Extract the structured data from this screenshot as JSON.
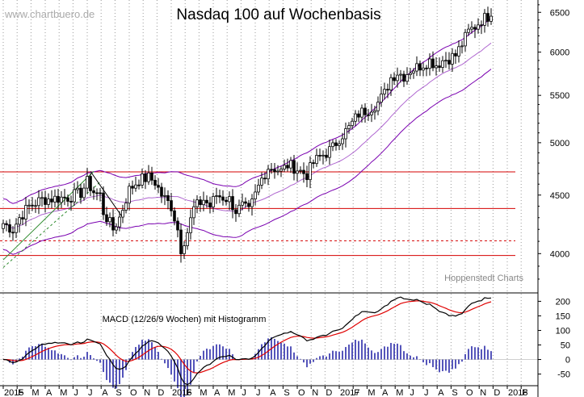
{
  "watermark": "www.chartbuero.de",
  "title": "Nasdaq 100 auf Wochenbasis",
  "credit": "Hoppenstedt Charts",
  "macd_label": "MACD (12/26/9 Wochen) mit Histogramm",
  "colors": {
    "grid": "#9a9a9a",
    "band": "#7a00b0",
    "hline": "#d40000",
    "trend_solid": "#2e8b2e",
    "trend_dashed": "#2e8b2e",
    "macd_line": "#000000",
    "signal_line": "#e00000",
    "histogram": "#2a2aa8"
  },
  "chart_data": [
    {
      "type": "candlestick",
      "title": "Nasdaq 100 auf Wochenbasis",
      "y_ticks": [
        4000,
        4500,
        5000,
        5500,
        6000,
        6500
      ],
      "ylim": [
        3720,
        6620
      ],
      "x_ticks": [
        {
          "label": "2015",
          "t": 0
        },
        {
          "label": "F",
          "t": 4.3
        },
        {
          "label": "M",
          "t": 8.6
        },
        {
          "label": "A",
          "t": 13
        },
        {
          "label": "M",
          "t": 17.3
        },
        {
          "label": "J",
          "t": 21.6
        },
        {
          "label": "J",
          "t": 26
        },
        {
          "label": "A",
          "t": 30.3
        },
        {
          "label": "S",
          "t": 34.6
        },
        {
          "label": "O",
          "t": 39
        },
        {
          "label": "N",
          "t": 43.3
        },
        {
          "label": "D",
          "t": 47.6
        },
        {
          "label": "2016",
          "t": 52
        },
        {
          "label": "F",
          "t": 56.3
        },
        {
          "label": "M",
          "t": 60.6
        },
        {
          "label": "A",
          "t": 65
        },
        {
          "label": "M",
          "t": 69.3
        },
        {
          "label": "J",
          "t": 73.6
        },
        {
          "label": "J",
          "t": 78
        },
        {
          "label": "A",
          "t": 82.3
        },
        {
          "label": "S",
          "t": 86.6
        },
        {
          "label": "O",
          "t": 91
        },
        {
          "label": "N",
          "t": 95.3
        },
        {
          "label": "D",
          "t": 99.6
        },
        {
          "label": "2017",
          "t": 104
        },
        {
          "label": "F",
          "t": 108.3
        },
        {
          "label": "M",
          "t": 112.6
        },
        {
          "label": "A",
          "t": 117
        },
        {
          "label": "M",
          "t": 121.3
        },
        {
          "label": "J",
          "t": 125.6
        },
        {
          "label": "J",
          "t": 130
        },
        {
          "label": "A",
          "t": 134.3
        },
        {
          "label": "S",
          "t": 138.6
        },
        {
          "label": "O",
          "t": 143
        },
        {
          "label": "N",
          "t": 147.3
        },
        {
          "label": "D",
          "t": 151.6
        },
        {
          "label": "2018",
          "t": 156
        },
        {
          "label": "F",
          "t": 160.3
        }
      ],
      "t_range": [
        0,
        162
      ],
      "close_keypoints": [
        [
          0,
          4250
        ],
        [
          3,
          4200
        ],
        [
          5,
          4300
        ],
        [
          8,
          4400
        ],
        [
          12,
          4460
        ],
        [
          16,
          4470
        ],
        [
          20,
          4480
        ],
        [
          24,
          4520
        ],
        [
          26,
          4620
        ],
        [
          28,
          4530
        ],
        [
          30,
          4500
        ],
        [
          31,
          4350
        ],
        [
          32,
          4300
        ],
        [
          34,
          4200
        ],
        [
          36,
          4300
        ],
        [
          39,
          4550
        ],
        [
          42,
          4640
        ],
        [
          45,
          4660
        ],
        [
          47,
          4620
        ],
        [
          49,
          4500
        ],
        [
          52,
          4400
        ],
        [
          54,
          4200
        ],
        [
          55,
          4040
        ],
        [
          57,
          4180
        ],
        [
          59,
          4380
        ],
        [
          62,
          4460
        ],
        [
          64,
          4400
        ],
        [
          66,
          4500
        ],
        [
          68,
          4480
        ],
        [
          70,
          4460
        ],
        [
          72,
          4360
        ],
        [
          74,
          4400
        ],
        [
          76,
          4350
        ],
        [
          78,
          4500
        ],
        [
          80,
          4650
        ],
        [
          82,
          4760
        ],
        [
          84,
          4750
        ],
        [
          86,
          4720
        ],
        [
          88,
          4780
        ],
        [
          90,
          4760
        ],
        [
          92,
          4720
        ],
        [
          94,
          4690
        ],
        [
          96,
          4800
        ],
        [
          98,
          4860
        ],
        [
          100,
          4900
        ],
        [
          102,
          4950
        ],
        [
          104,
          5050
        ],
        [
          107,
          5150
        ],
        [
          110,
          5300
        ],
        [
          113,
          5350
        ],
        [
          116,
          5420
        ],
        [
          118,
          5520
        ],
        [
          120,
          5700
        ],
        [
          122,
          5760
        ],
        [
          124,
          5720
        ],
        [
          126,
          5790
        ],
        [
          128,
          5820
        ],
        [
          130,
          5860
        ],
        [
          132,
          5900
        ],
        [
          134,
          5850
        ],
        [
          136,
          5900
        ],
        [
          138,
          5930
        ],
        [
          140,
          5960
        ],
        [
          142,
          6100
        ],
        [
          144,
          6250
        ],
        [
          146,
          6320
        ],
        [
          148,
          6400
        ],
        [
          150,
          6450
        ],
        [
          151,
          6520
        ]
      ],
      "horizontal_lines": [
        {
          "value": 4715,
          "style": "solid"
        },
        {
          "value": 4380,
          "style": "solid"
        },
        {
          "value": 4105,
          "style": "dashed"
        },
        {
          "value": 3985,
          "style": "solid"
        }
      ],
      "band_width": 230,
      "band_window": 20
    },
    {
      "type": "line+histogram",
      "label": "MACD (12/26/9 Wochen) mit Histogramm",
      "series": [
        {
          "name": "MACD",
          "values_from": "price EMA12 - EMA26"
        },
        {
          "name": "Signal",
          "values_from": "EMA9 of MACD"
        }
      ],
      "y_ticks": [
        200,
        150,
        100,
        50,
        0,
        -50
      ],
      "ylim": [
        -90,
        215
      ]
    }
  ]
}
